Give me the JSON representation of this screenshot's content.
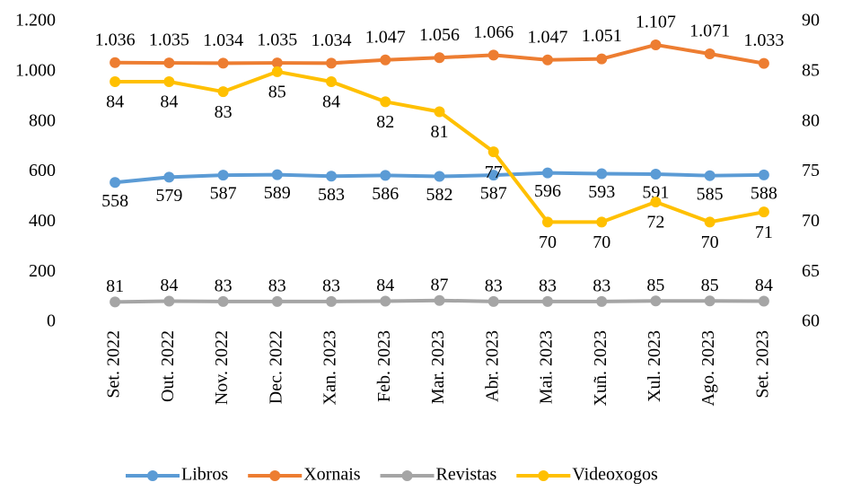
{
  "chart_data": {
    "type": "line",
    "categories": [
      "Set. 2022",
      "Out. 2022",
      "Nov. 2022",
      "Dec. 2022",
      "Xan. 2023",
      "Feb. 2023",
      "Mar. 2023",
      "Abr. 2023",
      "Mai. 2023",
      "Xuñ. 2023",
      "Xul. 2023",
      "Ago. 2023",
      "Set. 2023"
    ],
    "series": [
      {
        "name": "Libros",
        "color": "#5b9bd5",
        "values": [
          558,
          579,
          587,
          589,
          583,
          586,
          582,
          587,
          596,
          593,
          591,
          585,
          588
        ]
      },
      {
        "name": "Xornais",
        "color": "#ed7d31",
        "values": [
          1036,
          1035,
          1034,
          1035,
          1034,
          1047,
          1056,
          1066,
          1047,
          1051,
          1107,
          1071,
          1033
        ],
        "value_labels": [
          "1.036",
          "1.035",
          "1.034",
          "1.035",
          "1.034",
          "1.047",
          "1.056",
          "1.066",
          "1.047",
          "1.051",
          "1.107",
          "1.071",
          "1.033"
        ]
      },
      {
        "name": "Revistas",
        "color": "#a5a5a5",
        "values": [
          81,
          84,
          83,
          83,
          83,
          84,
          87,
          83,
          83,
          83,
          85,
          85,
          84
        ]
      },
      {
        "name": "Videoxogos",
        "color": "#ffc000",
        "axis": "y2",
        "values": [
          84,
          84,
          83,
          85,
          84,
          82,
          81,
          77,
          70,
          70,
          72,
          70,
          71
        ]
      }
    ],
    "ylim": [
      0,
      1200
    ],
    "yticks": [
      0,
      200,
      400,
      600,
      800,
      {
        "value": 1000,
        "label": "1.000"
      },
      {
        "value": 1200,
        "label": "1.200"
      }
    ],
    "y2lim": [
      60,
      90
    ],
    "y2ticks": [
      60,
      65,
      70,
      75,
      80,
      85,
      90
    ],
    "legend": "bottom"
  }
}
